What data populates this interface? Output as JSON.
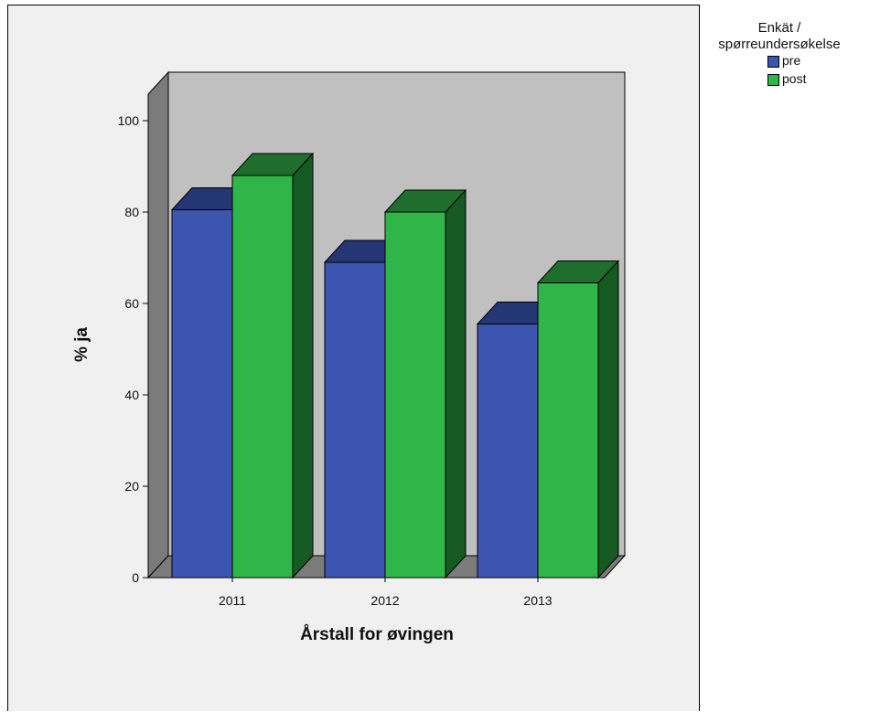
{
  "chart_data": {
    "type": "bar",
    "three_d": true,
    "categories": [
      "2011",
      "2012",
      "2013"
    ],
    "series": [
      {
        "name": "pre",
        "values": [
          80.5,
          69,
          55.5
        ],
        "color": "#3b55b0",
        "top_color": "#243673",
        "side_color": "#1b285a"
      },
      {
        "name": "post",
        "values": [
          88,
          80,
          64.5
        ],
        "color": "#2fb548",
        "top_color": "#1f6e2e",
        "side_color": "#165a23"
      }
    ],
    "xlabel": "Årstall for øvingen",
    "ylabel": "% ja",
    "ylim": [
      0,
      100
    ],
    "yticks": [
      "0",
      "20",
      "40",
      "60",
      "80",
      "100"
    ],
    "legend": {
      "title": "Enkät / spørreundersøkelse",
      "title_lines": [
        "Enkät /",
        "spørreundersøkelse"
      ],
      "placement": "top-right"
    },
    "colors": {
      "back_wall": "#c0c0c0",
      "side_wall": "#7b7b7b",
      "floor": "#7b7b7b",
      "frame_bg": "#f0f0f0"
    }
  }
}
